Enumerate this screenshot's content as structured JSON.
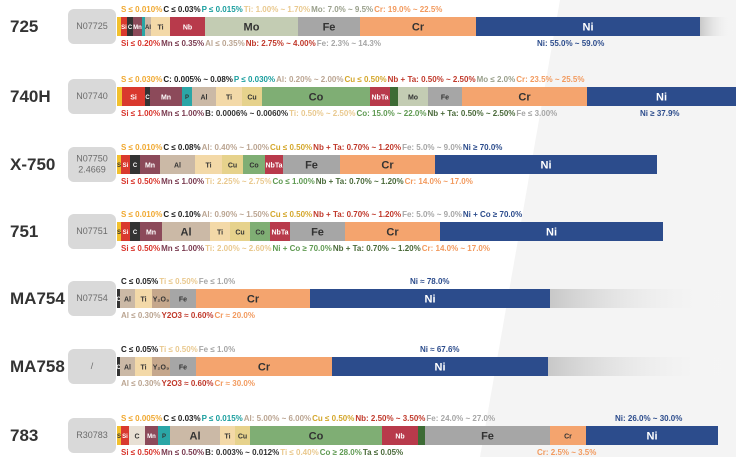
{
  "rows": [
    {
      "name": "725",
      "uns": [
        "N07725"
      ],
      "fade": true,
      "top": [
        {
          "text": "S ≤ 0.010%",
          "color": "#f0a830"
        },
        {
          "text": "C ≤ 0.03%",
          "color": "#222222"
        },
        {
          "text": "P ≤ 0.015%",
          "color": "#1a9e9e"
        },
        {
          "text": "Ti: 1.00% ~ 1.70%",
          "color": "#e9c98f"
        },
        {
          "text": "Mo: 7.0% ~ 9.5%",
          "color": "#9aa08c"
        },
        {
          "text": "Cr: 19.0% ~ 22.5%",
          "color": "#f29a5e"
        }
      ],
      "bottom": [
        {
          "text": "Si ≤ 0.20%",
          "color": "#d8342b"
        },
        {
          "text": "Mn ≤ 0.35%",
          "color": "#7a3b50"
        },
        {
          "text": "Al ≤ 0.35%",
          "color": "#bba592"
        },
        {
          "text": "Nb: 2.75% ~ 4.00%",
          "color": "#c0392b"
        },
        {
          "text": "Fe: 2.3% ~ 14.3%",
          "color": "#a6a6a6"
        }
      ],
      "bottom_extra": {
        "text": "Ni: 55.0% ~ 59.0%",
        "color": "#2c4c8c"
      },
      "segments": [
        {
          "color": "#f2c12e"
        },
        {
          "label": "Si",
          "color": "#d9392e"
        },
        {
          "label": "C",
          "color": "#333333"
        },
        {
          "label": "Mn",
          "color": "#8c4a5a"
        },
        {
          "color": "#2aa6a6"
        },
        {
          "label": "Al",
          "color": "#cbb9a6"
        },
        {
          "label": "Ti",
          "color": "#f3d9a8"
        },
        {
          "label": "Nb",
          "color": "#b83a4b"
        },
        {
          "label": "Mo",
          "color": "#c3ccb3"
        },
        {
          "label": "Fe",
          "color": "#a6a6a6"
        },
        {
          "label": "Cr",
          "color": "#f4a46e"
        },
        {
          "label": "Ni",
          "color": "#2c4c8c"
        }
      ]
    },
    {
      "name": "740H",
      "uns": [
        "N07740"
      ],
      "fade": false,
      "top": [
        {
          "text": "S ≤ 0.030%",
          "color": "#f0a830"
        },
        {
          "text": "C: 0.005% ~ 0.08%",
          "color": "#222222"
        },
        {
          "text": "P ≤ 0.030%",
          "color": "#1a9e9e"
        },
        {
          "text": "Al: 0.20% ~ 2.00%",
          "color": "#bba592"
        },
        {
          "text": "Cu ≤ 0.50%",
          "color": "#d4a72c"
        },
        {
          "text": "Nb + Ta: 0.50% ~ 2.50%",
          "color": "#c0392b"
        },
        {
          "text": "Mo ≤ 2.0%",
          "color": "#9aa08c"
        },
        {
          "text": "Cr: 23.5% ~ 25.5%",
          "color": "#f29a5e"
        }
      ],
      "bottom": [
        {
          "text": "Si ≤ 1.00%",
          "color": "#d8342b"
        },
        {
          "text": "Mn ≤ 1.00%",
          "color": "#7a3b50"
        },
        {
          "text": "B: 0.0006% ~ 0.0060%",
          "color": "#333333"
        },
        {
          "text": "Ti: 0.50% ~ 2.50%",
          "color": "#e9c98f"
        },
        {
          "text": "Co: 15.0% ~ 22.0%",
          "color": "#5f9a52"
        },
        {
          "text": "Nb + Ta: 0.50% ~ 2.50%",
          "color": "#4a6a3a"
        },
        {
          "text": "Fe ≤ 3.00%",
          "color": "#a6a6a6"
        }
      ],
      "bottom_extra": {
        "text": "Ni ≥ 37.9%",
        "color": "#2c4c8c"
      },
      "segments": [
        {
          "color": "#f2c12e"
        },
        {
          "label": "Si",
          "color": "#d9392e"
        },
        {
          "label": "C",
          "color": "#333333"
        },
        {
          "label": "Mn",
          "color": "#8c4a5a"
        },
        {
          "label": "P",
          "color": "#2aa6a6"
        },
        {
          "label": "Al",
          "color": "#cbb9a6"
        },
        {
          "label": "Ti",
          "color": "#f3d9a8"
        },
        {
          "label": "Cu",
          "color": "#e6d28c"
        },
        {
          "label": "Co",
          "color": "#7fae74"
        },
        {
          "label": "NbTa",
          "color": "#b83a4b"
        },
        {
          "color": "#3d6b35"
        },
        {
          "label": "Mo",
          "color": "#c3ccb3"
        },
        {
          "label": "Fe",
          "color": "#a6a6a6"
        },
        {
          "label": "Cr",
          "color": "#f4a46e"
        },
        {
          "label": "Ni",
          "color": "#2c4c8c"
        }
      ]
    },
    {
      "name": "X-750",
      "uns": [
        "N07750",
        "2.4669"
      ],
      "fade": false,
      "top": [
        {
          "text": "S ≤ 0.010%",
          "color": "#f0a830"
        },
        {
          "text": "C ≤ 0.08%",
          "color": "#222222"
        },
        {
          "text": "Al: 0.40% ~ 1.00%",
          "color": "#bba592"
        },
        {
          "text": "Cu ≤ 0.50%",
          "color": "#d4a72c"
        },
        {
          "text": "Nb + Ta: 0.70% ~ 1.20%",
          "color": "#c0392b"
        },
        {
          "text": "Fe: 5.0% ~ 9.0%",
          "color": "#a6a6a6"
        },
        {
          "text": "Ni ≥ 70.0%",
          "color": "#2c4c8c"
        }
      ],
      "bottom": [
        {
          "text": "Si ≤ 0.50%",
          "color": "#d8342b"
        },
        {
          "text": "Mn ≤ 1.00%",
          "color": "#7a3b50"
        },
        {
          "text": "Ti: 2.25% ~ 2.75%",
          "color": "#e9c98f"
        },
        {
          "text": "Co ≤ 1.00%",
          "color": "#5f9a52"
        },
        {
          "text": "Nb + Ta: 0.70% ~ 1.20%",
          "color": "#4a6a3a"
        },
        {
          "text": "Cr: 14.0% ~ 17.0%",
          "color": "#f29a5e"
        }
      ],
      "segments": [
        {
          "label": "S",
          "color": "#f2c12e"
        },
        {
          "label": "Si",
          "color": "#d9392e"
        },
        {
          "label": "C",
          "color": "#333333"
        },
        {
          "label": "Mn",
          "color": "#8c4a5a"
        },
        {
          "label": "Al",
          "color": "#cbb9a6"
        },
        {
          "label": "Ti",
          "color": "#f3d9a8"
        },
        {
          "label": "Cu",
          "color": "#e6d28c"
        },
        {
          "label": "Co",
          "color": "#7fae74"
        },
        {
          "label": "NbTa",
          "color": "#b83a4b"
        },
        {
          "label": "Fe",
          "color": "#a6a6a6"
        },
        {
          "label": "Cr",
          "color": "#f4a46e"
        },
        {
          "label": "Ni",
          "color": "#2c4c8c"
        }
      ]
    },
    {
      "name": "751",
      "uns": [
        "N07751"
      ],
      "fade": false,
      "top": [
        {
          "text": "S ≤ 0.010%",
          "color": "#f0a830"
        },
        {
          "text": "C ≤ 0.10%",
          "color": "#222222"
        },
        {
          "text": "Al: 0.90% ~ 1.50%",
          "color": "#bba592"
        },
        {
          "text": "Cu ≤ 0.50%",
          "color": "#d4a72c"
        },
        {
          "text": "Nb + Ta: 0.70% ~ 1.20%",
          "color": "#c0392b"
        },
        {
          "text": "Fe: 5.0% ~ 9.0%",
          "color": "#a6a6a6"
        },
        {
          "text": "Ni + Co ≥ 70.0%",
          "color": "#2c4c8c"
        }
      ],
      "bottom": [
        {
          "text": "Si ≤ 0.50%",
          "color": "#d8342b"
        },
        {
          "text": "Mn ≤ 1.00%",
          "color": "#7a3b50"
        },
        {
          "text": "Ti: 2.00% ~ 2.60%",
          "color": "#e9c98f"
        },
        {
          "text": "Ni + Co ≥ 70.0%",
          "color": "#5f9a52"
        },
        {
          "text": "Nb + Ta: 0.70% ~ 1.20%",
          "color": "#4a6a3a"
        },
        {
          "text": "Cr: 14.0% ~ 17.0%",
          "color": "#f29a5e"
        }
      ],
      "segments": [
        {
          "label": "S",
          "color": "#f2c12e"
        },
        {
          "label": "Si",
          "color": "#d9392e"
        },
        {
          "label": "C",
          "color": "#333333"
        },
        {
          "label": "Mn",
          "color": "#8c4a5a"
        },
        {
          "label": "Al",
          "color": "#cbb9a6"
        },
        {
          "label": "Ti",
          "color": "#f3d9a8"
        },
        {
          "label": "Cu",
          "color": "#e6d28c"
        },
        {
          "label": "Co",
          "color": "#7fae74"
        },
        {
          "label": "NbTa",
          "color": "#b83a4b"
        },
        {
          "label": "Fe",
          "color": "#a6a6a6"
        },
        {
          "label": "Cr",
          "color": "#f4a46e"
        },
        {
          "label": "Ni",
          "color": "#2c4c8c"
        }
      ]
    },
    {
      "name": "MA754",
      "uns": [
        "N07754"
      ],
      "fade": true,
      "top": [
        {
          "text": "C ≤ 0.05%",
          "color": "#222222"
        },
        {
          "text": "Ti ≤ 0.50%",
          "color": "#e9c98f"
        },
        {
          "text": "Fe ≤ 1.0%",
          "color": "#a6a6a6"
        }
      ],
      "top_extra": {
        "text": "Ni ≈ 78.0%",
        "color": "#2c4c8c"
      },
      "bottom": [
        {
          "text": "Al ≤ 0.30%",
          "color": "#bba592"
        },
        {
          "text": "Y2O3 ≈ 0.60%",
          "color": "#c0392b"
        },
        {
          "text": "Cr ≈ 20.0%",
          "color": "#f29a5e"
        }
      ],
      "segments": [
        {
          "label": "C",
          "color": "#333333"
        },
        {
          "label": "Al",
          "color": "#cbb9a6"
        },
        {
          "label": "Ti",
          "color": "#f3d9a8"
        },
        {
          "label": "Y₂O₃",
          "color": "#c5a78c"
        },
        {
          "label": "Fe",
          "color": "#a6a6a6"
        },
        {
          "label": "Cr",
          "color": "#f4a46e"
        },
        {
          "label": "Ni",
          "color": "#2c4c8c"
        }
      ]
    },
    {
      "name": "MA758",
      "uns": [
        "/"
      ],
      "fade": true,
      "top": [
        {
          "text": "C ≤ 0.05%",
          "color": "#222222"
        },
        {
          "text": "Ti ≤ 0.50%",
          "color": "#e9c98f"
        },
        {
          "text": "Fe ≤ 1.0%",
          "color": "#a6a6a6"
        }
      ],
      "top_extra": {
        "text": "Ni ≈ 67.6%",
        "color": "#2c4c8c"
      },
      "bottom": [
        {
          "text": "Al ≤ 0.30%",
          "color": "#bba592"
        },
        {
          "text": "Y2O3 ≈ 0.60%",
          "color": "#c0392b"
        },
        {
          "text": "Cr ≈ 30.0%",
          "color": "#f29a5e"
        }
      ],
      "segments": [
        {
          "label": "C",
          "color": "#333333"
        },
        {
          "label": "Al",
          "color": "#cbb9a6"
        },
        {
          "label": "Ti",
          "color": "#f3d9a8"
        },
        {
          "label": "Y₂O₃",
          "color": "#c5a78c"
        },
        {
          "label": "Fe",
          "color": "#a6a6a6"
        },
        {
          "label": "Cr",
          "color": "#f4a46e"
        },
        {
          "label": "Ni",
          "color": "#2c4c8c"
        }
      ]
    },
    {
      "name": "783",
      "uns": [
        "R30783"
      ],
      "fade": false,
      "top": [
        {
          "text": "S ≤ 0.005%",
          "color": "#f0a830"
        },
        {
          "text": "C ≤ 0.03%",
          "color": "#222222"
        },
        {
          "text": "P ≤ 0.015%",
          "color": "#1a9e9e"
        },
        {
          "text": "Al: 5.00% ~ 6.00%",
          "color": "#bba592"
        },
        {
          "text": "Cu ≤ 0.50%",
          "color": "#d4a72c"
        },
        {
          "text": "Nb: 2.50% ~ 3.50%",
          "color": "#c0392b"
        },
        {
          "text": "Fe: 24.0% ~ 27.0%",
          "color": "#a6a6a6"
        }
      ],
      "top_extra": {
        "text": "Ni: 26.0% ~ 30.0%",
        "color": "#2c4c8c"
      },
      "bottom": [
        {
          "text": "Si ≤ 0.50%",
          "color": "#d8342b"
        },
        {
          "text": "Mn ≤ 0.50%",
          "color": "#7a3b50"
        },
        {
          "text": "B: 0.003% ~ 0.012%",
          "color": "#333333"
        },
        {
          "text": "Ti ≤ 0.40%",
          "color": "#e9c98f"
        },
        {
          "text": "Co ≥ 28.0%",
          "color": "#5f9a52"
        },
        {
          "text": "Ta ≤ 0.05%",
          "color": "#4a6a3a"
        }
      ],
      "bottom_extra": {
        "text": "Cr: 2.5% ~ 3.5%",
        "color": "#f29a5e"
      },
      "segments": [
        {
          "label": "S",
          "color": "#f2c12e"
        },
        {
          "label": "Si",
          "color": "#d9392e"
        },
        {
          "label": "C",
          "color": "#e8e0d4"
        },
        {
          "label": "Mn",
          "color": "#8c4a5a"
        },
        {
          "label": "P",
          "color": "#2aa6a6"
        },
        {
          "label": "Al",
          "color": "#cbb9a6"
        },
        {
          "label": "Ti",
          "color": "#f3d9a8"
        },
        {
          "label": "Cu",
          "color": "#e6d28c"
        },
        {
          "label": "Co",
          "color": "#7fae74"
        },
        {
          "label": "Nb",
          "color": "#b83a4b"
        },
        {
          "color": "#3d6b35"
        },
        {
          "label": "Fe",
          "color": "#a6a6a6"
        },
        {
          "label": "Cr",
          "color": "#f4a46e"
        },
        {
          "label": "Ni",
          "color": "#2c4c8c"
        }
      ]
    }
  ]
}
